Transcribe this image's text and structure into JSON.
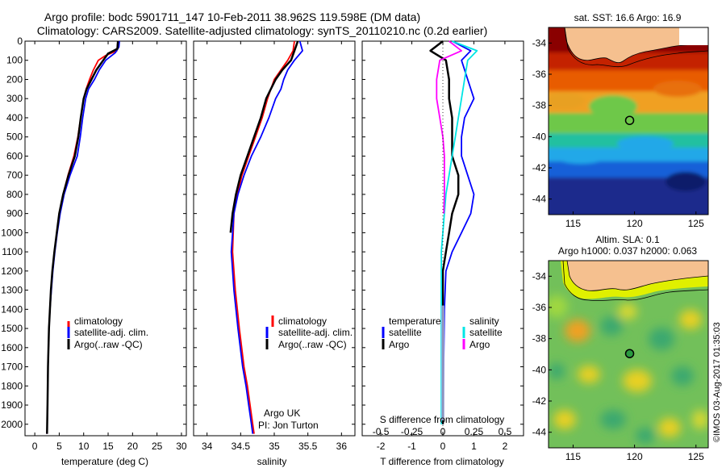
{
  "title_line1": "Argo profile: bodc 5901711_147 10-Feb-2011 38.962S 119.598E (DM data)",
  "title_line2": "Climatology: CARS2009. Satellite-adjusted climatology: synTS_20110210.nc (0.2d earlier)",
  "watermark": "©IMOS 03-Aug-2017 01:35:03",
  "colors": {
    "climatology": "#ff0000",
    "satellite": "#0000ff",
    "argo": "#000000",
    "satellite_sal": "#00e5e5",
    "argo_sal": "#ff00ff",
    "land": "#f5c08f"
  },
  "chart_data": [
    {
      "id": "temperature",
      "type": "line",
      "xlabel": "temperature (deg C)",
      "ylabel": "",
      "xlim": [
        -2,
        31
      ],
      "ylim": [
        2060,
        0
      ],
      "xticks": [
        "0",
        "5",
        "10",
        "15",
        "20",
        "25",
        "30"
      ],
      "yticks": [
        "0",
        "100",
        "200",
        "300",
        "400",
        "500",
        "600",
        "700",
        "800",
        "900",
        "1000",
        "1100",
        "1200",
        "1300",
        "1400",
        "1500",
        "1600",
        "1700",
        "1800",
        "1900",
        "2000"
      ],
      "legend": [
        "climatology",
        "satellite-adj. clim.",
        "Argo(..raw -QC)"
      ],
      "series": [
        {
          "name": "climatology",
          "color": "#ff0000",
          "x": [
            17.0,
            16.8,
            14.5,
            13.0,
            12.0,
            11.2,
            10.5,
            10.0,
            9.4,
            8.8,
            8.0,
            6.8,
            5.8,
            5.0,
            4.5,
            4.0,
            3.6,
            3.3,
            3.1,
            2.9,
            2.7,
            2.6,
            2.5
          ],
          "y": [
            0,
            50,
            75,
            100,
            150,
            200,
            250,
            300,
            400,
            500,
            600,
            700,
            800,
            900,
            1000,
            1100,
            1200,
            1300,
            1400,
            1500,
            1700,
            1900,
            2050
          ]
        },
        {
          "name": "satellite-adj. clim.",
          "color": "#0000ff",
          "x": [
            17.3,
            17.2,
            16.5,
            14.5,
            13.2,
            12.2,
            11.0,
            10.4,
            9.8,
            9.3,
            8.7,
            7.2,
            6.0,
            5.2,
            4.6,
            4.1,
            3.7,
            3.4,
            3.1,
            2.9,
            2.7,
            2.6,
            2.5
          ],
          "y": [
            0,
            30,
            60,
            100,
            150,
            200,
            250,
            300,
            400,
            500,
            600,
            700,
            800,
            900,
            1000,
            1100,
            1200,
            1300,
            1400,
            1500,
            1700,
            1900,
            2050
          ]
        },
        {
          "name": "Argo(..raw -QC)",
          "color": "#000000",
          "x": [
            17.0,
            16.9,
            15.0,
            14.0,
            12.6,
            11.6,
            10.6,
            10.0,
            9.4,
            8.9,
            8.2,
            6.9,
            5.8,
            5.0,
            4.5,
            4.0,
            3.6,
            3.3,
            3.1,
            2.9,
            2.7,
            2.6,
            2.5
          ],
          "y": [
            0,
            40,
            65,
            100,
            150,
            200,
            250,
            300,
            400,
            500,
            600,
            700,
            800,
            900,
            1000,
            1100,
            1200,
            1300,
            1400,
            1500,
            1700,
            1900,
            2050
          ]
        }
      ]
    },
    {
      "id": "salinity",
      "type": "line",
      "xlabel": "salinity",
      "xlim": [
        33.8,
        36.2
      ],
      "ylim": [
        2060,
        0
      ],
      "xticks": [
        "34",
        "34.5",
        "35",
        "35.5",
        "36"
      ],
      "legend": [
        "climatology",
        "satellite-adj. clim.",
        "Argo(..raw -QC)"
      ],
      "annotation": [
        "Argo UK",
        "PI: Jon Turton"
      ],
      "series": [
        {
          "name": "climatology",
          "color": "#ff0000",
          "x": [
            35.3,
            35.28,
            35.2,
            35.1,
            35.0,
            34.95,
            34.9,
            34.82,
            34.72,
            34.62,
            34.52,
            34.45,
            34.4,
            34.38,
            34.42,
            34.48,
            34.55,
            34.6,
            34.64,
            34.68,
            34.7
          ],
          "y": [
            0,
            50,
            100,
            150,
            200,
            250,
            300,
            400,
            500,
            600,
            700,
            800,
            900,
            1100,
            1300,
            1500,
            1700,
            1800,
            1900,
            2000,
            2050
          ]
        },
        {
          "name": "satellite-adj. clim.",
          "color": "#0000ff",
          "x": [
            35.38,
            35.42,
            35.3,
            35.2,
            35.14,
            35.1,
            35.02,
            34.92,
            34.8,
            34.66,
            34.55,
            34.46,
            34.4,
            34.36,
            34.4,
            34.46,
            34.53,
            34.58,
            34.62,
            34.66,
            34.68
          ],
          "y": [
            0,
            50,
            100,
            150,
            200,
            250,
            300,
            400,
            500,
            600,
            700,
            800,
            900,
            1100,
            1300,
            1500,
            1700,
            1800,
            1900,
            2000,
            2050
          ]
        },
        {
          "name": "Argo(..raw -QC)",
          "color": "#000000",
          "x": [
            35.35,
            35.3,
            35.25,
            35.12,
            35.02,
            34.95,
            34.88,
            34.8,
            34.7,
            34.6,
            34.5,
            34.43,
            34.38,
            34.35
          ],
          "y": [
            0,
            50,
            100,
            150,
            200,
            250,
            300,
            400,
            500,
            600,
            700,
            800,
            900,
            1000
          ]
        }
      ]
    },
    {
      "id": "difference",
      "type": "line",
      "xlabel": "T difference from climatology",
      "xlabel_top": "S difference from climatology",
      "xlim": [
        -2.6,
        2.6
      ],
      "ylim": [
        2060,
        0
      ],
      "xticks": [
        "-2",
        "-1",
        "0",
        "1",
        "2"
      ],
      "xticks_top": [
        "-0.5",
        "-0.25",
        "0",
        "0.25",
        "0.5"
      ],
      "legend_titles": [
        "temperature",
        "salinity"
      ],
      "legend": [
        "satellite",
        "Argo",
        "satellite",
        "Argo"
      ],
      "series": [
        {
          "name": "satellite",
          "color": "#0000ff",
          "x": [
            0.3,
            0.9,
            0.6,
            0.8,
            1.0,
            0.7,
            0.6,
            0.6,
            0.8,
            1.0,
            0.9,
            0.6,
            0.3,
            0.1,
            0.05,
            0.0
          ],
          "y": [
            0,
            50,
            100,
            200,
            300,
            400,
            500,
            600,
            700,
            800,
            900,
            1000,
            1100,
            1200,
            1400,
            2000
          ]
        },
        {
          "name": "Argo",
          "color": "#000000",
          "x": [
            0.0,
            -0.4,
            0.1,
            0.2,
            0.2,
            0.3,
            0.3,
            0.3,
            0.5,
            0.5,
            0.3,
            0.2,
            0.1,
            0.0,
            0.0
          ],
          "y": [
            0,
            50,
            100,
            200,
            300,
            400,
            500,
            600,
            700,
            800,
            900,
            1000,
            1100,
            1200,
            2000
          ]
        },
        {
          "name": "satellite",
          "color": "#00e5e5",
          "x": [
            0.3,
            1.1,
            0.8,
            0.7,
            0.6,
            0.5,
            0.4,
            0.3,
            0.2,
            0.1,
            0.05,
            0.0,
            -0.05,
            -0.05
          ],
          "y": [
            0,
            50,
            100,
            200,
            300,
            400,
            500,
            600,
            700,
            800,
            900,
            1000,
            1100,
            2000
          ]
        },
        {
          "name": "Argo",
          "color": "#ff00ff",
          "x": [
            0.2,
            0.6,
            -0.1,
            -0.2,
            -0.2,
            -0.1,
            0.0,
            0.05,
            0.05,
            0.05,
            0.03
          ],
          "y": [
            0,
            50,
            100,
            200,
            300,
            400,
            500,
            600,
            700,
            800,
            900
          ]
        }
      ]
    },
    {
      "id": "sst_map",
      "type": "heatmap",
      "title": "sat. SST: 16.6 Argo: 16.9",
      "xlim": [
        113,
        126
      ],
      "ylim": [
        -45,
        -33
      ],
      "xticks": [
        "115",
        "120",
        "125"
      ],
      "yticks": [
        "-34",
        "-36",
        "-38",
        "-40",
        "-42",
        "-44"
      ],
      "marker": {
        "lon": 119.6,
        "lat": -38.96
      }
    },
    {
      "id": "sla_map",
      "type": "heatmap",
      "title_line1": "Altim. SLA: 0.1",
      "title_line2": "Argo h1000: 0.037 h2000: 0.063",
      "xlim": [
        113,
        126
      ],
      "ylim": [
        -45,
        -33
      ],
      "xticks": [
        "115",
        "120",
        "125"
      ],
      "yticks": [
        "-34",
        "-36",
        "-38",
        "-40",
        "-42",
        "-44"
      ],
      "marker": {
        "lon": 119.6,
        "lat": -38.96
      }
    }
  ]
}
